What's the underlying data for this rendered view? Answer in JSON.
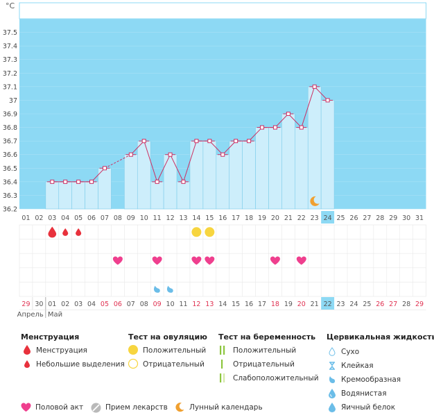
{
  "chart_data": {
    "type": "bar",
    "y_unit": "°C",
    "ylim": [
      36.2,
      37.6
    ],
    "y_ticks": [
      "36.2",
      "36.3",
      "36.4",
      "36.5",
      "36.6",
      "36.7",
      "36.8",
      "36.9",
      "37",
      "37.1",
      "37.2",
      "37.3",
      "37.4",
      "37.5"
    ],
    "cycle_days": [
      "01",
      "02",
      "03",
      "04",
      "05",
      "06",
      "07",
      "08",
      "09",
      "10",
      "11",
      "12",
      "13",
      "14",
      "15",
      "16",
      "17",
      "18",
      "19",
      "20",
      "21",
      "22",
      "23",
      "24",
      "25",
      "26",
      "27",
      "28",
      "29",
      "30",
      "31"
    ],
    "current_cycle_day": "24",
    "temperatures": [
      null,
      null,
      36.4,
      36.4,
      36.4,
      36.4,
      36.5,
      null,
      36.6,
      36.7,
      36.4,
      36.6,
      36.4,
      36.7,
      36.7,
      36.6,
      36.7,
      36.7,
      36.8,
      36.8,
      36.9,
      36.8,
      37.1,
      37.0,
      null,
      null,
      null,
      null,
      null,
      null,
      null
    ],
    "dashed_segment": [
      "07",
      "09"
    ],
    "fertile_window": [
      "09",
      "24"
    ],
    "menstruation_days": [
      "03",
      "04",
      "05"
    ],
    "ovulation_test_positive": [
      "14",
      "15"
    ],
    "intercourse_days": [
      "08",
      "11",
      "14",
      "15",
      "20",
      "22"
    ],
    "cervical_fluid_creamy": [
      "11",
      "12"
    ],
    "moon_days": [
      "23"
    ],
    "dates": [
      "29",
      "30",
      "01",
      "02",
      "03",
      "04",
      "05",
      "06",
      "07",
      "08",
      "09",
      "10",
      "11",
      "12",
      "13",
      "14",
      "15",
      "16",
      "17",
      "18",
      "19",
      "20",
      "21",
      "22",
      "23",
      "24",
      "25",
      "26",
      "27",
      "28",
      "29"
    ],
    "highlighted_dates": [
      "29",
      "05",
      "06",
      "09",
      "12",
      "13",
      "18",
      "20",
      "26",
      "27"
    ],
    "current_date": "22",
    "month_labels": [
      "Апрель",
      "Май"
    ]
  },
  "colors": {
    "band": "#8dd9f4",
    "bar": "#cdeefb",
    "bar_border": "#7fcdea",
    "line": "#cc2f62",
    "menstruation": "#e8313c",
    "ovulation": "#f7d53f",
    "heart": "#ef3f8e",
    "fluid": "#6bbde8",
    "moon": "#f0a030",
    "highlight_text": "#e03050"
  },
  "legend": {
    "menstruation": {
      "title": "Менструация",
      "items": [
        "Менструация",
        "Небольшие выделения"
      ]
    },
    "ovulation_test": {
      "title": "Тест на овуляцию",
      "items": [
        "Положительный",
        "Отрицательный"
      ]
    },
    "pregnancy_test": {
      "title": "Тест на беременность",
      "items": [
        "Положительный",
        "Отрицательный",
        "Слабоположительный"
      ]
    },
    "cervical_fluid": {
      "title": "Цервикальная жидкость",
      "items": [
        "Сухо",
        "Клейкая",
        "Кремообразная",
        "Водянистая",
        "Яичный белок"
      ]
    },
    "bottom": [
      "Половой акт",
      "Прием лекарств",
      "Лунный календарь"
    ]
  }
}
